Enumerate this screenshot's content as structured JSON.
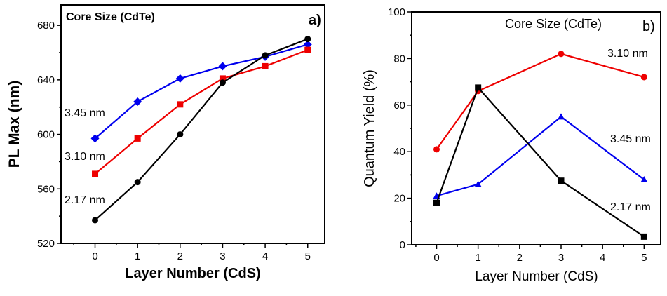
{
  "chart_data": [
    {
      "type": "line",
      "panel_label": "a)",
      "title": "Core Size (CdTe)",
      "xlabel": "Layer Number (CdS)",
      "ylabel": "PL Max (nm)",
      "xlim": [
        -0.8,
        5.4
      ],
      "ylim": [
        520,
        695
      ],
      "x_ticks": [
        0,
        1,
        2,
        3,
        4,
        5
      ],
      "y_ticks": [
        520,
        560,
        600,
        640,
        680
      ],
      "series": [
        {
          "name": "3.45 nm",
          "color": "#0000ee",
          "marker": "diamond",
          "x": [
            0,
            1,
            2,
            3,
            4,
            5
          ],
          "values": [
            597,
            624,
            641,
            650,
            657,
            666
          ]
        },
        {
          "name": "3.10 nm",
          "color": "#ee0000",
          "marker": "square",
          "x": [
            0,
            1,
            2,
            3,
            4,
            5
          ],
          "values": [
            571,
            597,
            622,
            641,
            650,
            662
          ]
        },
        {
          "name": "2.17 nm",
          "color": "#000000",
          "marker": "circle",
          "x": [
            0,
            1,
            2,
            3,
            4,
            5
          ],
          "values": [
            537,
            565,
            600,
            638,
            658,
            670
          ]
        }
      ]
    },
    {
      "type": "line",
      "panel_label": "b)",
      "title": "Core Size (CdTe)",
      "xlabel": "Layer Number (CdS)",
      "ylabel": "Quantum Yield (%)",
      "xlim": [
        -0.6,
        5.4
      ],
      "ylim": [
        0,
        100
      ],
      "x_ticks": [
        0,
        1,
        2,
        3,
        4,
        5
      ],
      "y_ticks": [
        0,
        20,
        40,
        60,
        80,
        100
      ],
      "series": [
        {
          "name": "3.10 nm",
          "color": "#ee0000",
          "marker": "circle",
          "x": [
            0,
            1,
            3,
            5
          ],
          "values": [
            41,
            66,
            82,
            72
          ]
        },
        {
          "name": "3.45 nm",
          "color": "#0000ee",
          "marker": "triangle",
          "x": [
            0,
            1,
            3,
            5
          ],
          "values": [
            21,
            26,
            55,
            28
          ]
        },
        {
          "name": "2.17 nm",
          "color": "#000000",
          "marker": "square",
          "x": [
            0,
            1,
            3,
            5
          ],
          "values": [
            18,
            67.5,
            27.5,
            3.5
          ]
        }
      ]
    }
  ]
}
